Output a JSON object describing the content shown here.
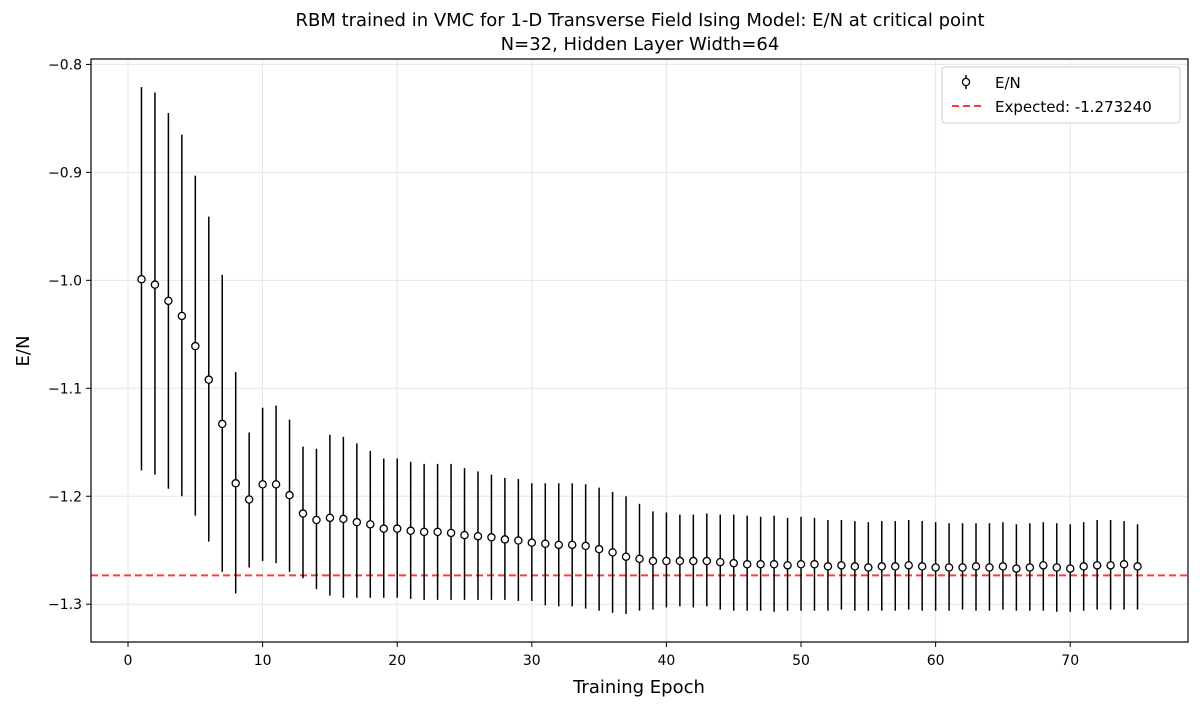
{
  "chart_data": {
    "type": "scatter",
    "title": "RBM trained in VMC for 1-D Transverse Field Ising Model: E/N at critical point",
    "subtitle": "N=32, Hidden Layer Width=64",
    "xlabel": "Training Epoch",
    "ylabel": "E/N",
    "xlim": [
      -2.75,
      78.75
    ],
    "ylim": [
      -1.335,
      -0.795
    ],
    "xticks": [
      0,
      10,
      20,
      30,
      40,
      50,
      60,
      70
    ],
    "yticks": [
      -1.3,
      -1.2,
      -1.1,
      -1.0,
      -0.9,
      -0.8
    ],
    "ytick_labels": [
      "−1.3",
      "−1.2",
      "−1.1",
      "−1.0",
      "−0.9",
      "−0.8"
    ],
    "grid": true,
    "legend_position": "top-right",
    "series": [
      {
        "name": "E/N",
        "kind": "errorbar",
        "x": [
          1,
          2,
          3,
          4,
          5,
          6,
          7,
          8,
          9,
          10,
          11,
          12,
          13,
          14,
          15,
          16,
          17,
          18,
          19,
          20,
          21,
          22,
          23,
          24,
          25,
          26,
          27,
          28,
          29,
          30,
          31,
          32,
          33,
          34,
          35,
          36,
          37,
          38,
          39,
          40,
          41,
          42,
          43,
          44,
          45,
          46,
          47,
          48,
          49,
          50,
          51,
          52,
          53,
          54,
          55,
          56,
          57,
          58,
          59,
          60,
          61,
          62,
          63,
          64,
          65,
          66,
          67,
          68,
          69,
          70,
          71,
          72,
          73,
          74,
          75
        ],
        "y": [
          -0.999,
          -1.004,
          -1.019,
          -1.033,
          -1.061,
          -1.092,
          -1.133,
          -1.188,
          -1.203,
          -1.189,
          -1.189,
          -1.199,
          -1.216,
          -1.222,
          -1.22,
          -1.221,
          -1.224,
          -1.226,
          -1.23,
          -1.23,
          -1.232,
          -1.233,
          -1.233,
          -1.234,
          -1.236,
          -1.237,
          -1.238,
          -1.24,
          -1.241,
          -1.243,
          -1.244,
          -1.245,
          -1.245,
          -1.246,
          -1.249,
          -1.252,
          -1.256,
          -1.258,
          -1.26,
          -1.26,
          -1.26,
          -1.26,
          -1.26,
          -1.261,
          -1.262,
          -1.263,
          -1.263,
          -1.263,
          -1.264,
          -1.263,
          -1.263,
          -1.265,
          -1.264,
          -1.265,
          -1.266,
          -1.265,
          -1.265,
          -1.264,
          -1.265,
          -1.266,
          -1.266,
          -1.266,
          -1.265,
          -1.266,
          -1.265,
          -1.267,
          -1.266,
          -1.264,
          -1.266,
          -1.267,
          -1.265,
          -1.264,
          -1.264,
          -1.263,
          -1.265
        ],
        "err_low": [
          -1.176,
          -1.18,
          -1.193,
          -1.2,
          -1.218,
          -1.242,
          -1.27,
          -1.29,
          -1.266,
          -1.26,
          -1.262,
          -1.27,
          -1.276,
          -1.286,
          -1.292,
          -1.294,
          -1.294,
          -1.294,
          -1.294,
          -1.294,
          -1.295,
          -1.296,
          -1.296,
          -1.296,
          -1.296,
          -1.296,
          -1.296,
          -1.296,
          -1.297,
          -1.297,
          -1.301,
          -1.302,
          -1.302,
          -1.304,
          -1.306,
          -1.308,
          -1.309,
          -1.306,
          -1.305,
          -1.303,
          -1.302,
          -1.303,
          -1.302,
          -1.305,
          -1.306,
          -1.306,
          -1.306,
          -1.307,
          -1.306,
          -1.306,
          -1.306,
          -1.306,
          -1.305,
          -1.306,
          -1.306,
          -1.306,
          -1.306,
          -1.305,
          -1.306,
          -1.306,
          -1.306,
          -1.305,
          -1.306,
          -1.306,
          -1.305,
          -1.306,
          -1.306,
          -1.306,
          -1.307,
          -1.307,
          -1.306,
          -1.305,
          -1.305,
          -1.305,
          -1.305
        ],
        "err_high": [
          -0.821,
          -0.826,
          -0.845,
          -0.865,
          -0.903,
          -0.941,
          -0.995,
          -1.085,
          -1.141,
          -1.118,
          -1.116,
          -1.129,
          -1.154,
          -1.156,
          -1.143,
          -1.145,
          -1.151,
          -1.158,
          -1.165,
          -1.165,
          -1.168,
          -1.17,
          -1.17,
          -1.17,
          -1.174,
          -1.177,
          -1.18,
          -1.183,
          -1.184,
          -1.188,
          -1.188,
          -1.188,
          -1.188,
          -1.189,
          -1.192,
          -1.196,
          -1.2,
          -1.207,
          -1.214,
          -1.215,
          -1.217,
          -1.217,
          -1.216,
          -1.217,
          -1.217,
          -1.218,
          -1.219,
          -1.218,
          -1.22,
          -1.219,
          -1.22,
          -1.222,
          -1.222,
          -1.223,
          -1.224,
          -1.223,
          -1.223,
          -1.222,
          -1.223,
          -1.224,
          -1.225,
          -1.225,
          -1.225,
          -1.225,
          -1.224,
          -1.226,
          -1.225,
          -1.224,
          -1.225,
          -1.226,
          -1.224,
          -1.222,
          -1.222,
          -1.223,
          -1.226
        ],
        "color": "#000000",
        "marker_face": "#ffffff"
      }
    ],
    "reference_line": {
      "name": "Expected: -1.273240",
      "y": -1.27324,
      "color": "#ff3b3b",
      "style": "dashed"
    }
  }
}
